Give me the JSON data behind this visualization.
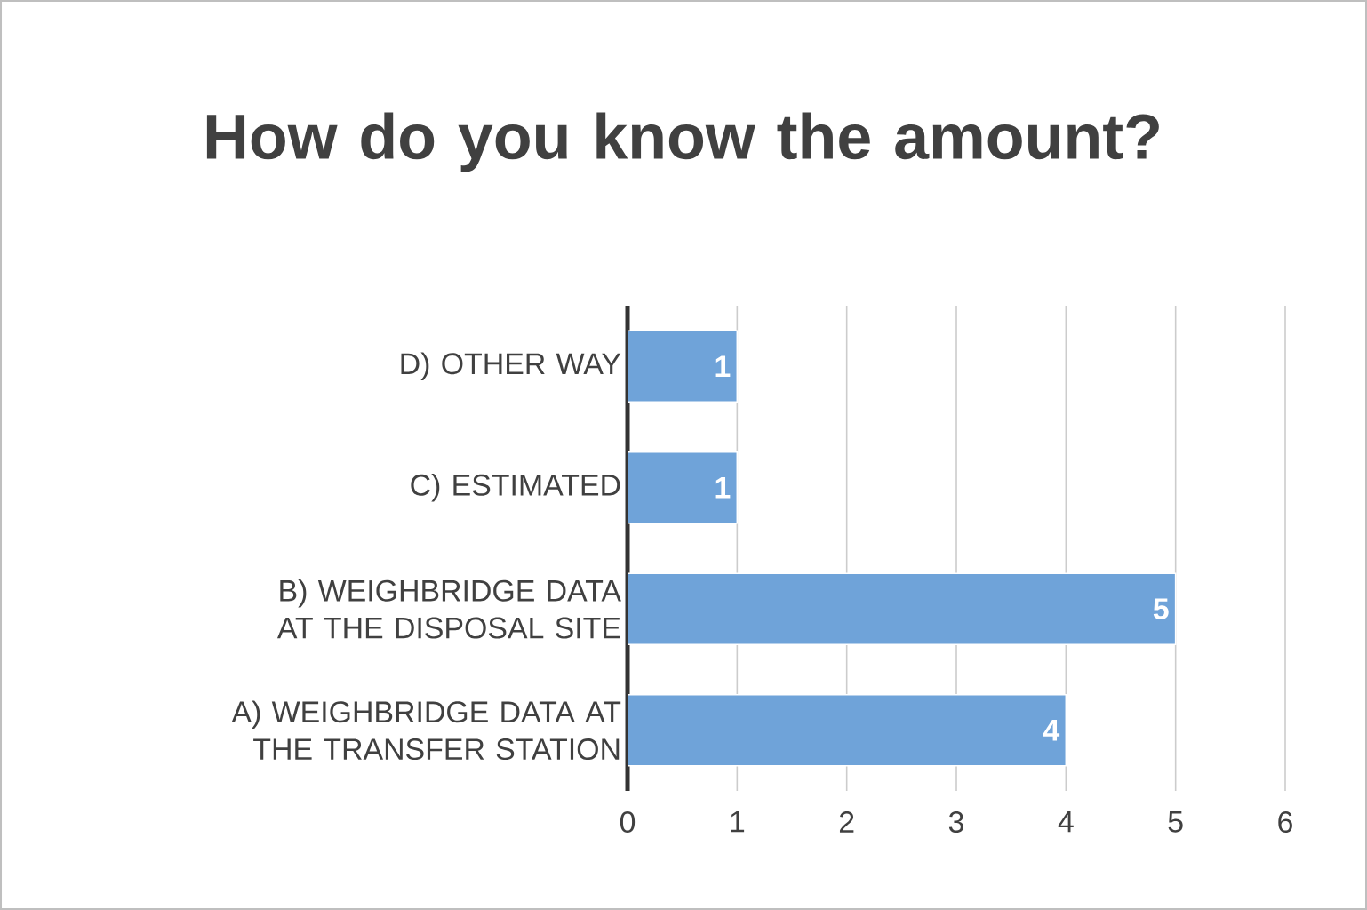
{
  "chart_data": {
    "type": "bar",
    "orientation": "horizontal",
    "title": "How do you know the amount?",
    "categories": [
      "D) OTHER WAY",
      "C) ESTIMATED",
      "B) WEIGHBRIDGE DATA AT THE DISPOSAL SITE",
      "A) WEIGHBRIDGE DATA AT THE TRANSFER STATION"
    ],
    "values": [
      1,
      1,
      5,
      4
    ],
    "color": "#6fa3d9",
    "xlim": [
      0,
      6
    ],
    "xticks": [
      0,
      1,
      2,
      3,
      4,
      5,
      6
    ],
    "grid": "x",
    "data_labels": true
  }
}
